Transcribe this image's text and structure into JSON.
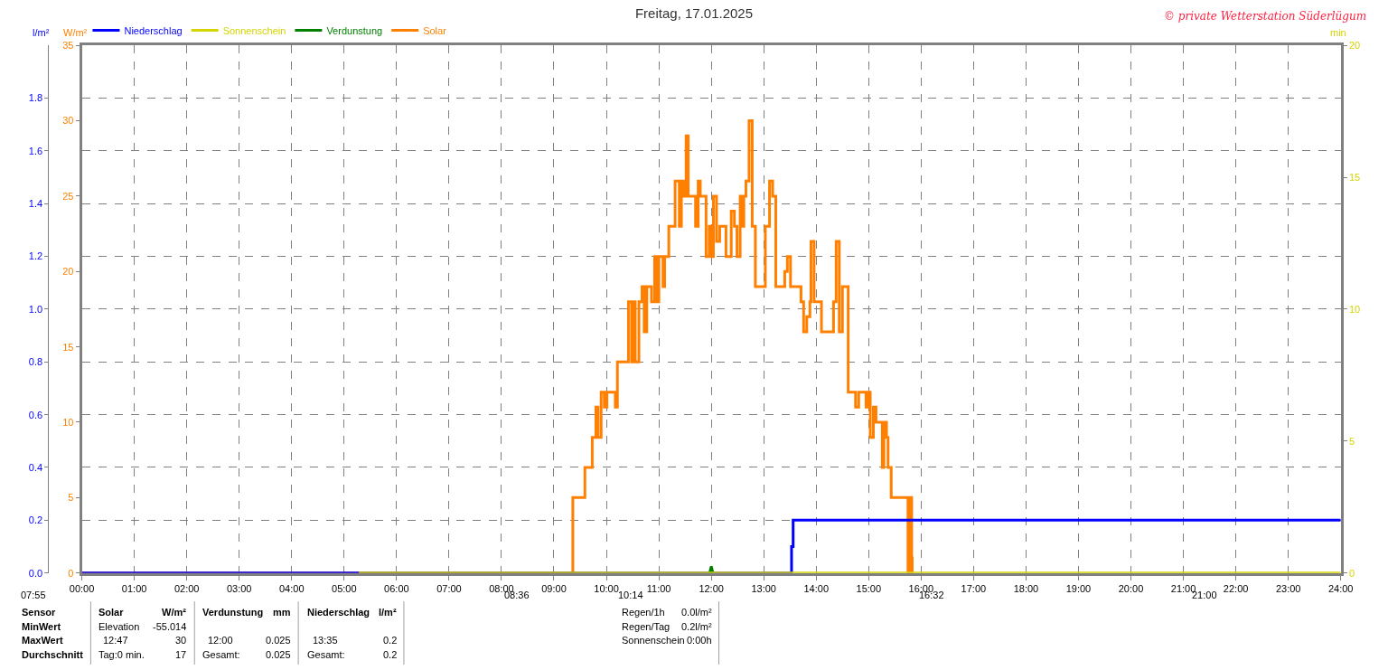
{
  "chart_data": {
    "type": "step",
    "title": "Freitag, 17.01.2025",
    "ylabel": "W/m²",
    "y2label": "l/m²",
    "y3label": "min",
    "legend": "top left",
    "grid": true,
    "xlim": [
      0,
      24
    ],
    "xticks": [
      {
        "value": 0,
        "label": "00:00"
      },
      {
        "value": 1,
        "label": "01:00"
      },
      {
        "value": 2,
        "label": "02:00"
      },
      {
        "value": 3,
        "label": "03:00"
      },
      {
        "value": 4,
        "label": "04:00"
      },
      {
        "value": 5,
        "label": "05:00"
      },
      {
        "value": 6,
        "label": "06:00"
      },
      {
        "value": 7,
        "label": "07:00"
      },
      {
        "value": 8,
        "label": "08:00"
      },
      {
        "value": 9,
        "label": "09:00"
      },
      {
        "value": 10,
        "label": "10:00"
      },
      {
        "value": 11,
        "label": "11:00"
      },
      {
        "value": 12,
        "label": "12:00"
      },
      {
        "value": 13,
        "label": "13:00"
      },
      {
        "value": 14,
        "label": "14:00"
      },
      {
        "value": 15,
        "label": "15:00"
      },
      {
        "value": 16,
        "label": "16:00"
      },
      {
        "value": 17,
        "label": "17:00"
      },
      {
        "value": 18,
        "label": "18:00"
      },
      {
        "value": 19,
        "label": "19:00"
      },
      {
        "value": 20,
        "label": "20:00"
      },
      {
        "value": 21,
        "label": "21:00"
      },
      {
        "value": 22,
        "label": "22:00"
      },
      {
        "value": 23,
        "label": "23:00"
      },
      {
        "value": 24,
        "label": "24:00"
      }
    ],
    "ylim": [
      0,
      35
    ],
    "yticks": [
      0,
      5,
      10,
      15,
      20,
      25,
      30,
      35
    ],
    "y2lim": [
      0,
      2.0
    ],
    "y2ticks": [
      {
        "value": 0,
        "label": "0.0"
      },
      0.2,
      0.4,
      0.6,
      0.8,
      {
        "value": 1,
        "label": "1.0"
      },
      1.2,
      1.4,
      1.6,
      1.8
    ],
    "y3lim": [
      0,
      20
    ],
    "y3ticks": [
      0,
      5,
      10,
      15,
      20
    ],
    "series": [
      {
        "name": "Niederschlag",
        "color": "#0000ff",
        "axis": "y2",
        "x": [
          0,
          13.53,
          13.56,
          24
        ],
        "values": [
          0,
          0.1,
          0.2,
          0.2
        ]
      },
      {
        "name": "Sonnenschein",
        "color": "#d4d400",
        "axis": "y3",
        "x": [
          5.28,
          24
        ],
        "values": [
          0,
          0
        ]
      },
      {
        "name": "Verdunstung",
        "color": "#008000",
        "type": "line",
        "axis": "y2",
        "x": [
          11.97,
          12,
          12.03
        ],
        "values": [
          0,
          0.025,
          0
        ]
      },
      {
        "name": "Solar",
        "color": "#ff8000",
        "x": [
          0,
          9.36,
          9.59,
          9.73,
          9.8,
          9.84,
          9.9,
          9.96,
          10.01,
          10.13,
          10.17,
          10.21,
          10.35,
          10.42,
          10.48,
          10.52,
          10.55,
          10.62,
          10.68,
          10.72,
          10.77,
          10.86,
          10.92,
          10.96,
          11.0,
          11.08,
          11.11,
          11.19,
          11.24,
          11.31,
          11.39,
          11.43,
          11.48,
          11.52,
          11.56,
          11.65,
          11.7,
          11.75,
          11.79,
          11.87,
          11.9,
          11.96,
          11.99,
          12.04,
          12.1,
          12.16,
          12.24,
          12.28,
          12.33,
          12.38,
          12.44,
          12.49,
          12.55,
          12.58,
          12.62,
          12.66,
          12.72,
          12.78,
          12.84,
          12.95,
          13.03,
          13.11,
          13.17,
          13.23,
          13.34,
          13.4,
          13.45,
          13.51,
          13.65,
          13.71,
          13.76,
          13.82,
          13.88,
          13.9,
          13.96,
          14.07,
          14.1,
          14.3,
          14.33,
          14.38,
          14.44,
          14.5,
          14.58,
          14.61,
          14.72,
          14.75,
          14.81,
          14.89,
          14.95,
          15.0,
          15.03,
          15.09,
          15.14,
          15.2,
          15.26,
          15.29,
          15.34,
          15.37,
          15.43,
          15.74,
          15.75,
          15.78,
          15.82,
          15.83
        ],
        "values": [
          0,
          5,
          7,
          9,
          11,
          9,
          12,
          11,
          12,
          12,
          11,
          14,
          14,
          18,
          14,
          18,
          14,
          18,
          19,
          16,
          19,
          18,
          21,
          18,
          21,
          19,
          21,
          23,
          23,
          26,
          23,
          26,
          25,
          29,
          25,
          25,
          23,
          26,
          25,
          25,
          21,
          23,
          21,
          25,
          22,
          23,
          23,
          21,
          21,
          24,
          23,
          21,
          25,
          23,
          25,
          26,
          30,
          23,
          19,
          19,
          23,
          26,
          25,
          19,
          19,
          20,
          21,
          19,
          19,
          18,
          16,
          17,
          18,
          22,
          18,
          18,
          16,
          16,
          18,
          22,
          16,
          19,
          19,
          12,
          12,
          11,
          12,
          12,
          11,
          12,
          9,
          11,
          10,
          10,
          7,
          10,
          9,
          7,
          5,
          5,
          0,
          5,
          1,
          0
        ]
      }
    ],
    "annotations": [
      "© private Wetterstation Süderlügum",
      "07:55",
      "08:36",
      "10:14",
      "16:32",
      "21:00",
      "Sensor",
      "MinWert",
      "MaxWert",
      "Durchschnitt",
      "Solar",
      "W/m²",
      "Elevation",
      "-55.014",
      "12:47",
      "30",
      "Tag:0 min.",
      "17",
      "Verdunstung",
      "mm",
      "12:00",
      "0.025",
      "Gesamt:",
      "0.025",
      "Niederschlag",
      "l/m²",
      "13:35",
      "0.2",
      "Gesamt:",
      "0.2",
      "Regen/1h",
      "0.0l/m²",
      "Regen/Tag",
      "0.2l/m²",
      "Sonnenschein",
      "0:00h"
    ]
  }
}
